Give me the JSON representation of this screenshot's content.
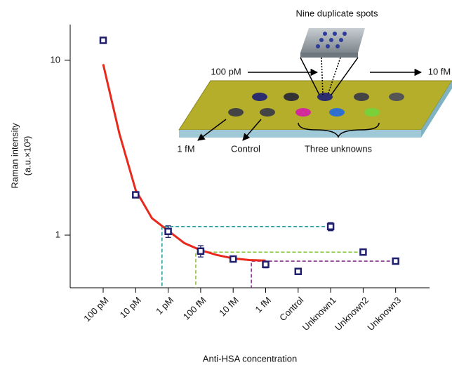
{
  "chart_data": {
    "type": "scatter",
    "y_label": [
      "Raman intensity",
      "(a.u.×10³)"
    ],
    "x_label": "Anti-HSA concentration",
    "categories": [
      "100 pM",
      "10 pM",
      "1 pM",
      "100 fM",
      "10 fM",
      "1 fM",
      "Control",
      "Unknown1",
      "Unknown2",
      "Unknown3"
    ],
    "values": [
      13,
      1.7,
      1.05,
      0.81,
      0.73,
      0.68,
      0.62,
      1.12,
      0.8,
      0.71
    ],
    "errors": [
      0.02,
      0.02,
      0.08,
      0.06,
      0.02,
      0.03,
      0.02,
      0.06,
      0.02,
      0.02
    ],
    "color": "#1f1f6e",
    "ylim": [
      0.5,
      16
    ],
    "yticks": [
      1,
      10
    ],
    "log_scale": true,
    "fit": {
      "color": "#e8291c",
      "x": [
        0,
        0.5,
        1,
        1.5,
        2,
        2.5,
        3,
        3.5,
        4,
        4.5,
        5
      ],
      "values": [
        9.5,
        3.8,
        1.81,
        1.25,
        1.06,
        0.9,
        0.82,
        0.77,
        0.736,
        0.72,
        0.715
      ]
    },
    "guides": [
      {
        "unknown": 7,
        "x": 1.81,
        "color": "#2a9a9a"
      },
      {
        "unknown": 8,
        "x": 2.85,
        "color": "#8dc63f"
      },
      {
        "unknown": 9,
        "x": 4.56,
        "color": "#8b2f8b"
      }
    ],
    "annotations": [
      "Nine duplicate spots",
      "100 pM",
      "10 fM",
      "1 fM",
      "Control",
      "Three unknowns"
    ]
  }
}
